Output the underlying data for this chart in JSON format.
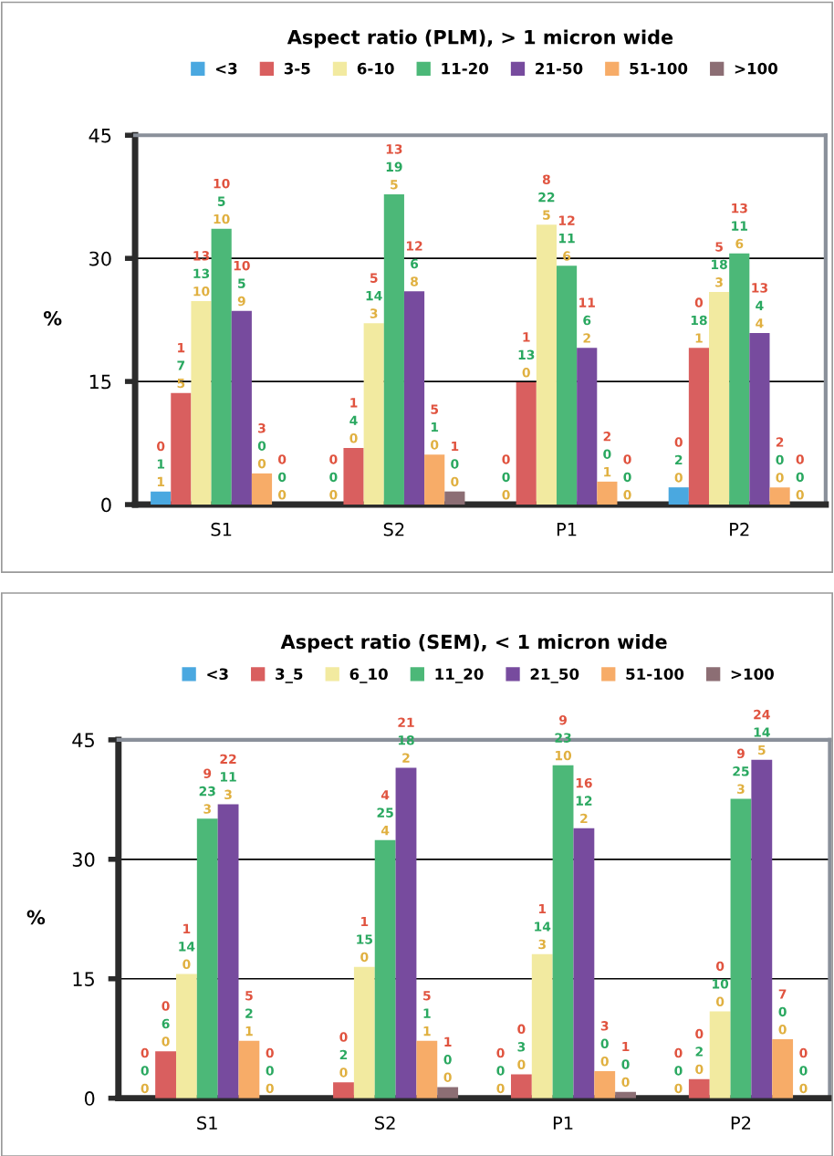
{
  "chart_data": [
    {
      "type": "bar",
      "title": "Aspect ratio (PLM), > 1 micron wide",
      "ylabel": "%",
      "categories": [
        "S1",
        "S2",
        "P1",
        "P2"
      ],
      "ylim": [
        0,
        45
      ],
      "yticks": [
        0,
        15,
        30,
        45
      ],
      "grid": "y",
      "legend": "top",
      "marker": "square",
      "series": [
        {
          "name": "<3",
          "color": "#4aa8e0",
          "values": [
            1.6,
            0,
            0,
            2.1
          ]
        },
        {
          "name": "3-5",
          "color": "#d95f5f",
          "values": [
            13.6,
            6.9,
            14.9,
            19.1
          ]
        },
        {
          "name": "6-10",
          "color": "#f2eaa0",
          "values": [
            24.8,
            22.1,
            34.1,
            25.9
          ]
        },
        {
          "name": "11-20",
          "color": "#4cb878",
          "values": [
            33.6,
            37.8,
            29.1,
            30.6
          ]
        },
        {
          "name": "21-50",
          "color": "#774b9e",
          "values": [
            23.6,
            26.0,
            19.1,
            20.9
          ]
        },
        {
          "name": "51-100",
          "color": "#f7ac68",
          "values": [
            3.8,
            6.1,
            2.8,
            2.1
          ]
        },
        {
          "name": ">100",
          "color": "#8c6e74",
          "values": [
            0,
            1.6,
            0,
            0
          ]
        }
      ],
      "annotations": [
        "0\n1\n1",
        "1\n7\n5",
        "13\n13\n10",
        "10\n5\n10",
        "10\n5\n9",
        "3\n0\n0",
        "0\n0\n0",
        "0\n0\n0",
        "1\n4\n0",
        "5\n14\n3",
        "13\n19\n5",
        "12\n6\n8",
        "5\n1\n0",
        "1\n0\n0",
        "0\n0\n0",
        "1\n13\n0",
        "8\n22\n5",
        "12\n11\n6",
        "11\n6\n2",
        "2\n0\n1",
        "0\n0\n0",
        "0\n2\n0",
        "0\n18\n1",
        "5\n18\n3",
        "13\n11\n6",
        "13\n4\n4",
        "2\n0\n0",
        "0\n0\n0"
      ]
    },
    {
      "type": "bar",
      "title": "Aspect ratio (SEM), < 1 micron wide",
      "ylabel": "%",
      "categories": [
        "S1",
        "S2",
        "P1",
        "P2"
      ],
      "ylim": [
        0,
        45
      ],
      "yticks": [
        0,
        15,
        30,
        45
      ],
      "grid": "y",
      "legend": "top",
      "marker": "square",
      "series": [
        {
          "name": "<3",
          "color": "#4aa8e0",
          "values": [
            0,
            0,
            0,
            0
          ]
        },
        {
          "name": "3_5",
          "color": "#d95f5f",
          "values": [
            5.9,
            2.0,
            3.0,
            2.4
          ]
        },
        {
          "name": "6_10",
          "color": "#f2eaa0",
          "values": [
            15.6,
            16.5,
            18.1,
            10.9
          ]
        },
        {
          "name": "11_20",
          "color": "#4cb878",
          "values": [
            35.1,
            32.4,
            41.8,
            37.6
          ]
        },
        {
          "name": "21_50",
          "color": "#774b9e",
          "values": [
            36.9,
            41.5,
            33.9,
            42.5
          ]
        },
        {
          "name": "51-100",
          "color": "#f7ac68",
          "values": [
            7.2,
            7.2,
            3.4,
            7.4
          ]
        },
        {
          "name": ">100",
          "color": "#8c6e74",
          "values": [
            0,
            1.4,
            0.8,
            0
          ]
        }
      ],
      "annotations": [
        "0\n0\n0",
        "0\n6\n0",
        "1\n14\n0",
        "9\n23\n3",
        "22\n11\n3",
        "5\n2\n1",
        "0\n0\n0",
        null,
        "0\n2\n0",
        "1\n15\n0",
        "4\n25\n4",
        "21\n18\n2",
        "5\n1\n1",
        "1\n0\n0",
        "0\n0\n0",
        "0\n3\n0",
        "1\n14\n3",
        "9\n23\n10",
        "16\n12\n2",
        "3\n0\n0",
        "1\n0\n0",
        "0\n0\n0",
        "0\n2\n0",
        "0\n10\n0",
        "9\n25\n3",
        "24\n14\n5",
        "7\n0\n0",
        "0\n0\n0"
      ]
    }
  ]
}
